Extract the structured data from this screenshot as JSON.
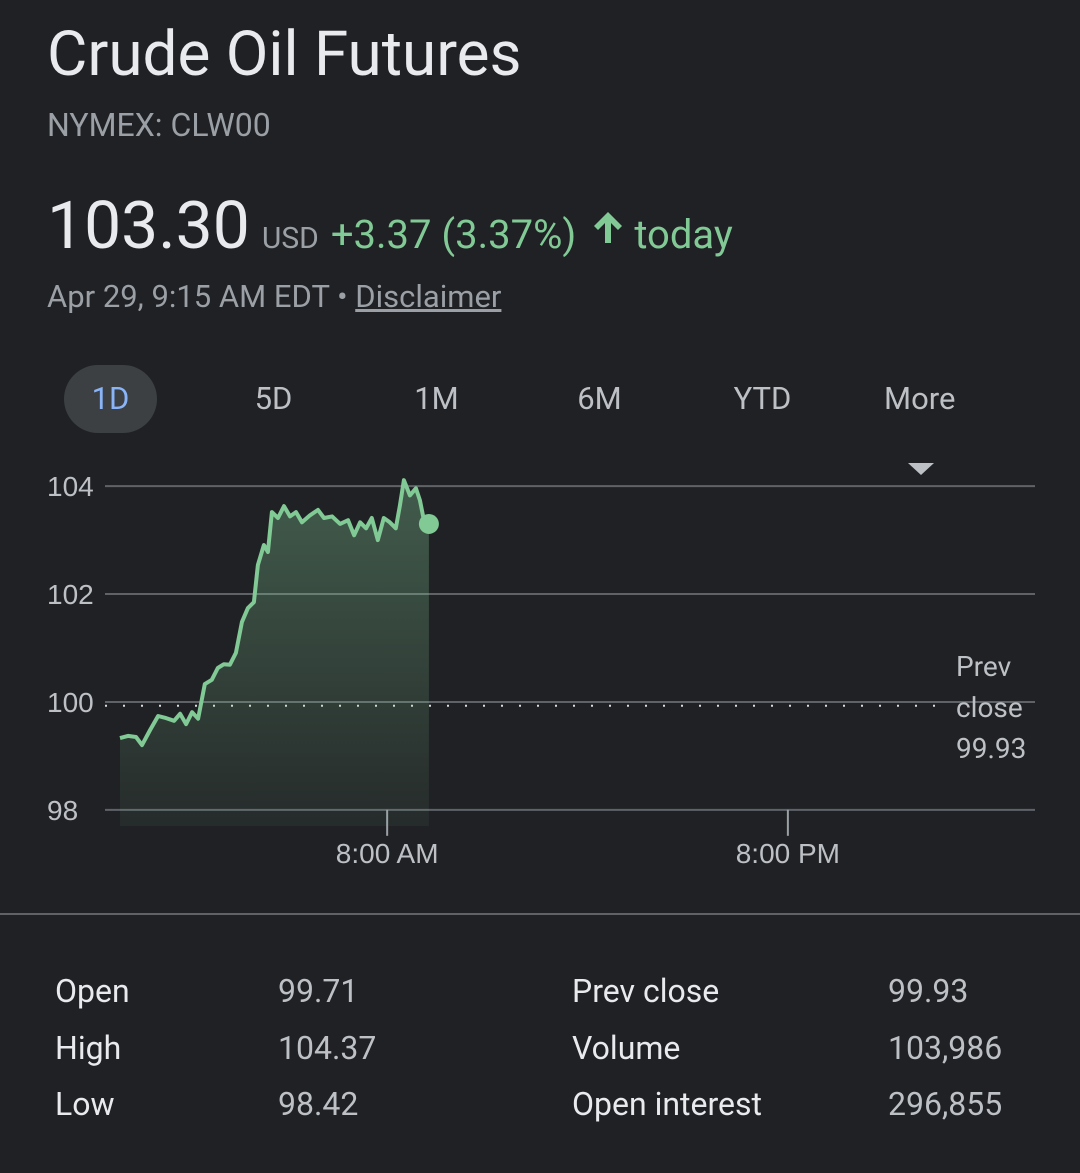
{
  "header": {
    "title": "Crude Oil Futures",
    "subtitle": "NYMEX: CLW00"
  },
  "quote": {
    "price": "103.30",
    "currency": "USD",
    "change": "+3.37 (3.37%)",
    "period": "today",
    "timestamp": "Apr 29, 9:15 AM EDT",
    "separator": "•",
    "disclaimer": "Disclaimer"
  },
  "tabs": {
    "items": [
      "1D",
      "5D",
      "1M",
      "6M",
      "YTD",
      "More"
    ],
    "selected": 0
  },
  "chart_data": {
    "type": "line",
    "color": "#81c995",
    "grid": true,
    "fill": true,
    "x": [
      0,
      0.24,
      0.48,
      0.66,
      0.9,
      1.14,
      1.38,
      1.62,
      1.8,
      1.98,
      2.16,
      2.34,
      2.54,
      2.75,
      2.93,
      3.11,
      3.29,
      3.47,
      3.65,
      3.83,
      4.01,
      4.13,
      4.31,
      4.43,
      4.55,
      4.73,
      4.91,
      5.09,
      5.27,
      5.45,
      5.69,
      5.93,
      6.11,
      6.35,
      6.59,
      6.83,
      7.01,
      7.19,
      7.37,
      7.54,
      7.72,
      7.9,
      8.08,
      8.26,
      8.38,
      8.5,
      8.68,
      8.86,
      8.98,
      9.1,
      9.25
    ],
    "values": [
      99.33,
      99.37,
      99.35,
      99.2,
      99.48,
      99.74,
      99.7,
      99.65,
      99.78,
      99.59,
      99.81,
      99.69,
      100.33,
      100.41,
      100.63,
      100.7,
      100.69,
      100.91,
      101.48,
      101.74,
      101.85,
      102.54,
      102.91,
      102.78,
      103.52,
      103.41,
      103.63,
      103.44,
      103.52,
      103.33,
      103.46,
      103.56,
      103.41,
      103.44,
      103.3,
      103.37,
      103.09,
      103.33,
      103.22,
      103.41,
      103.0,
      103.41,
      103.33,
      103.22,
      103.63,
      104.11,
      103.83,
      103.96,
      103.74,
      103.37,
      103.3
    ],
    "xlim": [
      0,
      27.4
    ],
    "xticks": [
      {
        "value": 8,
        "label": "8:00 AM"
      },
      {
        "value": 20,
        "label": "8:00 PM"
      }
    ],
    "ylim": [
      97.7,
      104.3
    ],
    "yticks": [
      98,
      100,
      102,
      104
    ],
    "prev_close_label": "Prev close",
    "prev_close": 99.93
  },
  "stats": {
    "rows": [
      [
        "Open",
        "99.71",
        "Prev close",
        "99.93"
      ],
      [
        "High",
        "104.37",
        "Volume",
        "103,986"
      ],
      [
        "Low",
        "98.42",
        "Open interest",
        "296,855"
      ]
    ]
  }
}
